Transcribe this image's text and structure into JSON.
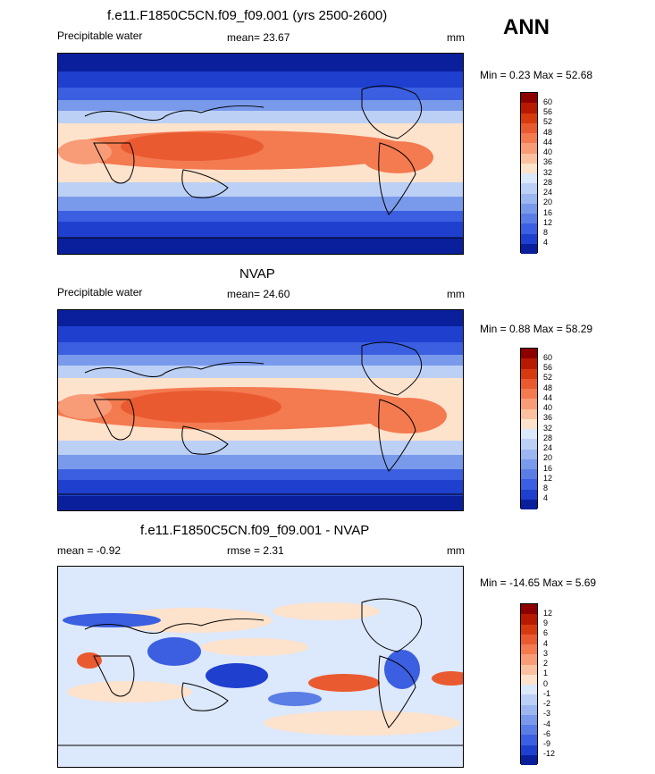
{
  "header": {
    "title": "f.e11.F1850C5CN.f09_f09.001 (yrs 2500-2600)",
    "season": "ANN"
  },
  "panels": [
    {
      "id": "model",
      "title": "",
      "left_label": "Precipitable water",
      "center_label": "mean=  23.67",
      "units": "mm",
      "minmax": "Min =   0.23 Max =  52.68",
      "colorbar": {
        "labels": [
          "60",
          "56",
          "52",
          "48",
          "44",
          "40",
          "36",
          "32",
          "28",
          "24",
          "20",
          "16",
          "12",
          "8",
          "4"
        ],
        "colors": [
          "#8c0000",
          "#b81a00",
          "#d83a10",
          "#ea5a30",
          "#f47a50",
          "#f89c78",
          "#fbc0a0",
          "#fde2cc",
          "#dce8fb",
          "#bcd0f6",
          "#9bb6f0",
          "#799aeb",
          "#5a7ee6",
          "#3b5fe0",
          "#1f3fcf",
          "#0a1f9c"
        ]
      }
    },
    {
      "id": "obs",
      "title": "NVAP",
      "left_label": "Precipitable water",
      "center_label": "mean=  24.60",
      "units": "mm",
      "minmax": "Min =   0.88 Max =  58.29",
      "colorbar": {
        "labels": [
          "60",
          "56",
          "52",
          "48",
          "44",
          "40",
          "36",
          "32",
          "28",
          "24",
          "20",
          "16",
          "12",
          "8",
          "4"
        ],
        "colors": [
          "#8c0000",
          "#b81a00",
          "#d83a10",
          "#ea5a30",
          "#f47a50",
          "#f89c78",
          "#fbc0a0",
          "#fde2cc",
          "#dce8fb",
          "#bcd0f6",
          "#9bb6f0",
          "#799aeb",
          "#5a7ee6",
          "#3b5fe0",
          "#1f3fcf",
          "#0a1f9c"
        ]
      }
    },
    {
      "id": "diff",
      "title": "f.e11.F1850C5CN.f09_f09.001 - NVAP",
      "left_label": "mean =  -0.92",
      "center_label": "rmse =   2.31",
      "units": "mm",
      "minmax": "Min = -14.65 Max =    5.69",
      "colorbar": {
        "labels": [
          "12",
          "9",
          "6",
          "4",
          "3",
          "2",
          "1",
          "0",
          "-1",
          "-2",
          "-3",
          "-4",
          "-6",
          "-9",
          "-12"
        ],
        "colors": [
          "#8c0000",
          "#b81a00",
          "#d83a10",
          "#ea5a30",
          "#f47a50",
          "#f89c78",
          "#fbc0a0",
          "#fde2cc",
          "#dce8fb",
          "#bcd0f6",
          "#9bb6f0",
          "#799aeb",
          "#5a7ee6",
          "#3b5fe0",
          "#1f3fcf",
          "#0a1f9c"
        ]
      }
    }
  ]
}
